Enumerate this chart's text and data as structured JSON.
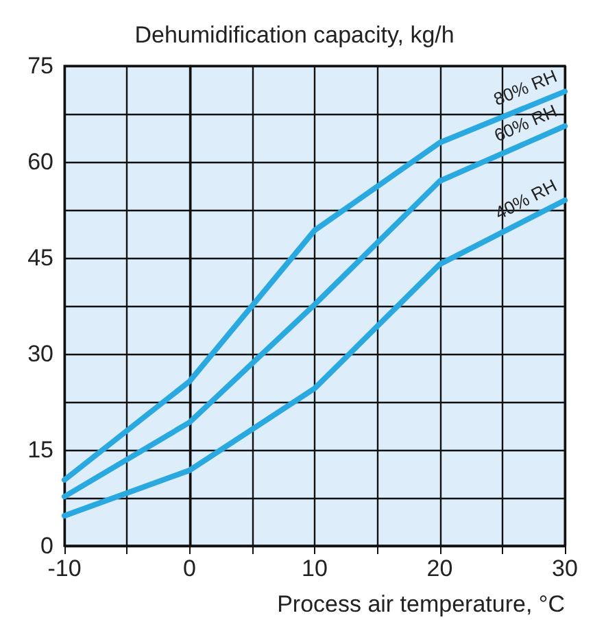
{
  "chart_data": {
    "type": "line",
    "xlabel": "Process air temperature, °C",
    "ylabel": "Dehumidification capacity, kg/h",
    "x": [
      -10,
      0,
      10,
      20,
      30
    ],
    "series": [
      {
        "name": "80% RH",
        "color": "#29a9e0",
        "values": [
          10.3,
          25.7,
          49.3,
          63,
          71
        ]
      },
      {
        "name": "60% RH",
        "color": "#29a9e0",
        "values": [
          7.7,
          19.3,
          37.7,
          57,
          65.6
        ]
      },
      {
        "name": "40% RH",
        "color": "#29a9e0",
        "values": [
          4.7,
          11.8,
          24.6,
          44,
          54
        ]
      }
    ],
    "xlim": [
      -10,
      30
    ],
    "xticks": [
      -10,
      0,
      10,
      20,
      30
    ],
    "ylim": [
      0,
      75
    ],
    "yticks": [
      0,
      15,
      30,
      45,
      60,
      75
    ],
    "grid": true,
    "legend": false,
    "marker": "none",
    "line_style": "solid"
  }
}
